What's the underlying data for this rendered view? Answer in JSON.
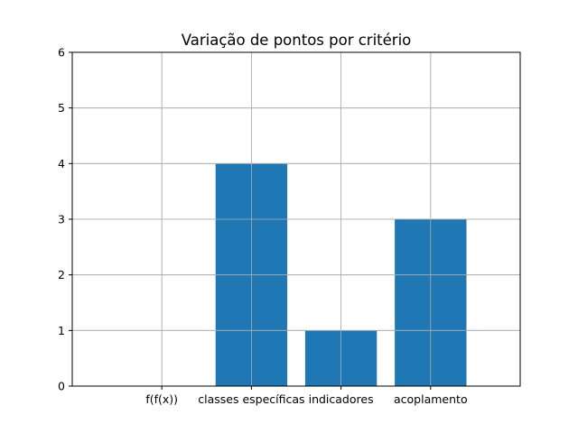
{
  "chart_data": {
    "type": "bar",
    "title": "Variação de pontos por critério",
    "xlabel": "",
    "ylabel": "",
    "categories": [
      "f(f(x))",
      "classes específicas",
      "indicadores",
      "acoplamento"
    ],
    "values": [
      0,
      4,
      1,
      3
    ],
    "ylim": [
      0,
      6
    ],
    "yticks": [
      "0",
      "1",
      "2",
      "3",
      "4",
      "5",
      "6"
    ],
    "grid": true,
    "bar_color": "#1f77b4",
    "grid_color": "#b0b0b0",
    "axis_color": "#000000"
  }
}
